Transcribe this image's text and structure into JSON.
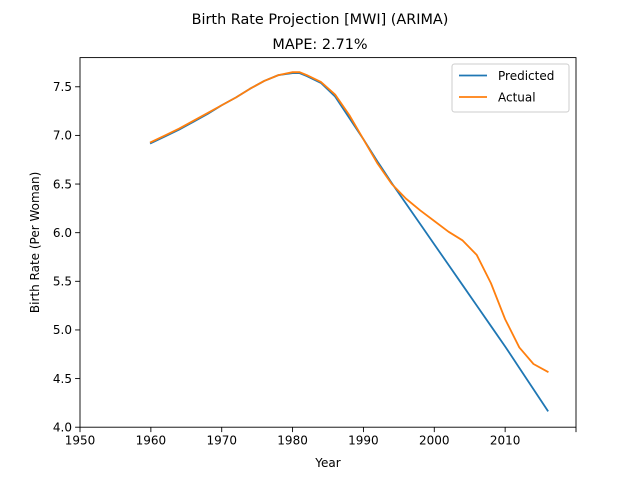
{
  "chart_data": {
    "type": "line",
    "title": "Birth Rate Projection [MWI] (ARIMA)",
    "subtitle": "MAPE: 2.71%",
    "xlabel": "Year",
    "ylabel": "Birth Rate (Per Woman)",
    "xlim": [
      1950,
      2020
    ],
    "ylim": [
      4.0,
      7.8
    ],
    "xticks": [
      1950,
      1960,
      1970,
      1980,
      1990,
      2000,
      2010,
      2020
    ],
    "xtick_labels": [
      "1950",
      "1960",
      "1970",
      "1980",
      "1990",
      "2000",
      "2010",
      ""
    ],
    "yticks": [
      4.0,
      4.5,
      5.0,
      5.5,
      6.0,
      6.5,
      7.0,
      7.5
    ],
    "ytick_labels": [
      "4.0",
      "4.5",
      "5.0",
      "5.5",
      "6.0",
      "6.5",
      "7.0",
      "7.5"
    ],
    "legend_position": "top-right",
    "grid": false,
    "series": [
      {
        "name": "Predicted",
        "color": "#1f77b4",
        "x": [
          1960,
          1962,
          1964,
          1966,
          1968,
          1970,
          1972,
          1974,
          1976,
          1978,
          1980,
          1981,
          1982,
          1984,
          1986,
          1988,
          1990,
          1992,
          1994,
          1996,
          1998,
          2000,
          2002,
          2004,
          2006,
          2008,
          2010,
          2012,
          2014,
          2016
        ],
        "y": [
          6.92,
          6.99,
          7.06,
          7.14,
          7.22,
          7.31,
          7.39,
          7.48,
          7.56,
          7.62,
          7.64,
          7.64,
          7.61,
          7.54,
          7.4,
          7.18,
          6.96,
          6.73,
          6.51,
          6.3,
          6.09,
          5.88,
          5.67,
          5.46,
          5.25,
          5.04,
          4.83,
          4.61,
          4.39,
          4.17
        ]
      },
      {
        "name": "Actual",
        "color": "#ff7f0e",
        "x": [
          1960,
          1962,
          1964,
          1966,
          1968,
          1970,
          1972,
          1974,
          1976,
          1978,
          1980,
          1981,
          1982,
          1984,
          1986,
          1988,
          1990,
          1992,
          1994,
          1996,
          1998,
          2000,
          2002,
          2004,
          2006,
          2008,
          2010,
          2012,
          2014,
          2016
        ],
        "y": [
          6.93,
          7.0,
          7.07,
          7.15,
          7.23,
          7.31,
          7.39,
          7.48,
          7.56,
          7.62,
          7.65,
          7.65,
          7.62,
          7.55,
          7.42,
          7.21,
          6.96,
          6.71,
          6.5,
          6.35,
          6.23,
          6.12,
          6.01,
          5.92,
          5.77,
          5.48,
          5.11,
          4.82,
          4.65,
          4.57
        ]
      }
    ]
  }
}
